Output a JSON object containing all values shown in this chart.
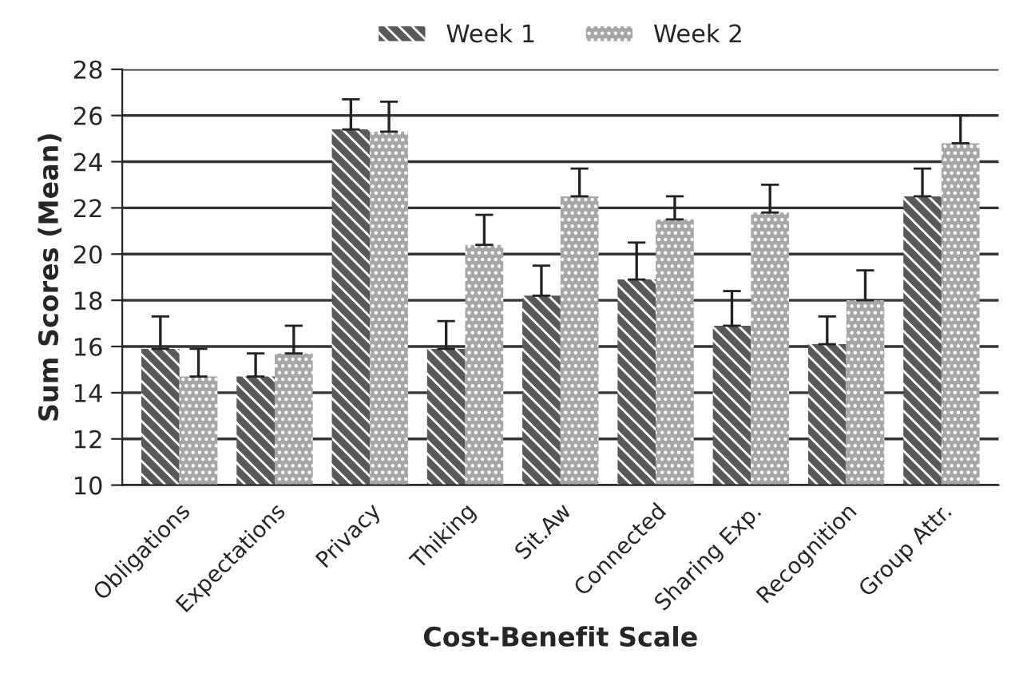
{
  "chart_data": {
    "type": "bar",
    "xlabel": "Cost-Benefit Scale",
    "ylabel": "Sum Scores (Mean)",
    "categories": [
      "Obligations",
      "Expectations",
      "Privacy",
      "Thiking",
      "Sit.Aw",
      "Connected",
      "Sharing Exp.",
      "Recognition",
      "Group Attr."
    ],
    "series": [
      {
        "name": "Week 1",
        "color": "#595959",
        "values": [
          15.9,
          14.7,
          25.4,
          15.9,
          18.2,
          18.9,
          16.9,
          16.1,
          22.5
        ],
        "errors": [
          [
            15.9,
            17.3
          ],
          [
            14.7,
            15.7
          ],
          [
            25.4,
            26.7
          ],
          [
            15.9,
            17.1
          ],
          [
            18.2,
            19.5
          ],
          [
            18.9,
            20.5
          ],
          [
            16.9,
            18.4
          ],
          [
            16.1,
            17.3
          ],
          [
            22.5,
            23.7
          ]
        ]
      },
      {
        "name": "Week 2",
        "color": "#a6a6a6",
        "values": [
          14.7,
          15.7,
          25.3,
          20.4,
          22.5,
          21.5,
          21.8,
          18.0,
          24.8
        ],
        "errors": [
          [
            14.7,
            15.9
          ],
          [
            15.7,
            16.9
          ],
          [
            25.3,
            26.6
          ],
          [
            20.4,
            21.7
          ],
          [
            22.5,
            23.7
          ],
          [
            21.5,
            22.5
          ],
          [
            21.8,
            23.0
          ],
          [
            18.0,
            19.3
          ],
          [
            24.8,
            26.0
          ]
        ]
      }
    ],
    "ylim": [
      10,
      28
    ],
    "yticks": [
      10,
      12,
      14,
      16,
      18,
      20,
      22,
      24,
      26,
      28
    ],
    "grid": "y",
    "legend": "top"
  }
}
